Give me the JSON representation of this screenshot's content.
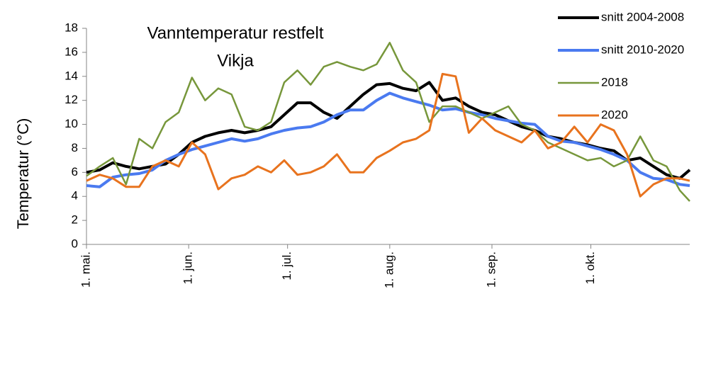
{
  "chart_data": {
    "type": "line",
    "title": [
      "Vanntemperatur  restfelt",
      "Vikja"
    ],
    "y_label": "Temperatur (°C)",
    "x": [
      0,
      4,
      8,
      12,
      16,
      20,
      24,
      28,
      32,
      36,
      40,
      44,
      48,
      52,
      56,
      60,
      64,
      68,
      72,
      76,
      80,
      84,
      88,
      92,
      96,
      100,
      104,
      108,
      112,
      116,
      120,
      124,
      128,
      132,
      136,
      140,
      144,
      148,
      152,
      156,
      160,
      164,
      168,
      172,
      176,
      180,
      183
    ],
    "xlim": [
      0,
      183
    ],
    "xticks": [
      {
        "value": 0,
        "label": "1. mai."
      },
      {
        "value": 31,
        "label": "1. jun."
      },
      {
        "value": 61,
        "label": "1. jul."
      },
      {
        "value": 92,
        "label": "1. aug."
      },
      {
        "value": 123,
        "label": "1. sep."
      },
      {
        "value": 153,
        "label": "1. okt."
      }
    ],
    "ylim": [
      0,
      18
    ],
    "yticks": [
      0,
      2,
      4,
      6,
      8,
      10,
      12,
      14,
      16,
      18
    ],
    "grid": false,
    "legend": "upper right",
    "series": [
      {
        "name": "snitt 2004-2008",
        "color": "#000000",
        "width": 4,
        "values": [
          6.0,
          6.2,
          6.8,
          6.5,
          6.3,
          6.5,
          6.7,
          7.5,
          8.5,
          9.0,
          9.3,
          9.5,
          9.3,
          9.5,
          9.8,
          10.8,
          11.8,
          11.8,
          11.0,
          10.5,
          11.5,
          12.5,
          13.3,
          13.4,
          13.0,
          12.8,
          13.5,
          12.0,
          12.2,
          11.5,
          11.0,
          10.8,
          10.3,
          9.8,
          9.5,
          9.0,
          8.8,
          8.5,
          8.3,
          8.0,
          7.8,
          7.0,
          7.2,
          6.5,
          5.8,
          5.5,
          6.2
        ]
      },
      {
        "name": "snitt 2010-2020",
        "color": "#4a7af0",
        "width": 4,
        "values": [
          4.9,
          4.8,
          5.6,
          5.8,
          5.9,
          6.2,
          7.0,
          7.5,
          7.9,
          8.2,
          8.5,
          8.8,
          8.6,
          8.8,
          9.2,
          9.5,
          9.7,
          9.8,
          10.2,
          10.8,
          11.2,
          11.2,
          12.0,
          12.6,
          12.2,
          11.9,
          11.6,
          11.2,
          11.3,
          11.0,
          10.8,
          10.5,
          10.3,
          10.1,
          10.0,
          9.0,
          8.6,
          8.5,
          8.2,
          7.9,
          7.5,
          7.0,
          6.0,
          5.5,
          5.4,
          5.0,
          4.9
        ]
      },
      {
        "name": "2018",
        "color": "#77973b",
        "width": 2.5,
        "values": [
          5.7,
          6.5,
          7.2,
          5.0,
          8.8,
          8.0,
          10.2,
          11.0,
          13.9,
          12.0,
          13.0,
          12.5,
          9.8,
          9.5,
          10.2,
          13.5,
          14.5,
          13.3,
          14.8,
          15.2,
          14.8,
          14.5,
          15.0,
          16.8,
          14.5,
          13.5,
          10.2,
          11.5,
          11.5,
          11.0,
          10.5,
          11.0,
          11.5,
          10.0,
          9.5,
          8.5,
          8.0,
          7.5,
          7.0,
          7.2,
          6.5,
          7.0,
          9.0,
          7.0,
          6.5,
          4.5,
          3.6
        ]
      },
      {
        "name": "2020",
        "color": "#e8731e",
        "width": 3,
        "values": [
          5.3,
          5.8,
          5.5,
          4.8,
          4.8,
          6.5,
          7.0,
          6.5,
          8.5,
          7.5,
          4.6,
          5.5,
          5.8,
          6.5,
          6.0,
          7.0,
          5.8,
          6.0,
          6.5,
          7.5,
          6.0,
          6.0,
          7.2,
          7.8,
          8.5,
          8.8,
          9.5,
          14.2,
          14.0,
          9.3,
          10.5,
          9.5,
          9.0,
          8.5,
          9.5,
          8.0,
          8.5,
          9.8,
          8.5,
          10.0,
          9.5,
          7.5,
          4.0,
          5.0,
          5.5,
          5.5,
          5.3
        ]
      }
    ]
  }
}
